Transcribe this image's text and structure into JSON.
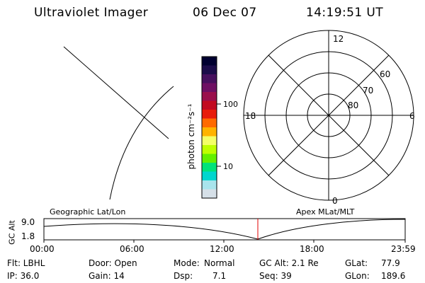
{
  "header": {
    "title": "Ultraviolet Imager",
    "date": "06 Dec 07",
    "time": "14:19:51 UT"
  },
  "colorbar": {
    "label": "photon cm⁻²s⁻¹",
    "ticks": [
      "100",
      "10"
    ],
    "colors": [
      "#000030",
      "#1b0c4a",
      "#46105e",
      "#6e0f63",
      "#9a0f4c",
      "#c20a20",
      "#e81c0b",
      "#ff6a00",
      "#ffb300",
      "#f4ff66",
      "#bfff00",
      "#63f000",
      "#00e37a",
      "#00d6ce",
      "#a8e4ec",
      "#d6e0e8"
    ]
  },
  "polar": {
    "mlt_labels": {
      "top": "12",
      "right": "6",
      "bottom": "0",
      "left": "18"
    },
    "lat_labels": [
      "60",
      "70",
      "80"
    ]
  },
  "plot": {
    "left_label": "Geographic Lat/Lon",
    "right_label": "Apex  MLat/MLT",
    "ylabel": "GC Alt",
    "yticks": [
      "9.0",
      "1.8"
    ],
    "xticks": [
      "00:00",
      "06:00",
      "12:00",
      "18:00",
      "23:59"
    ],
    "marker_color": "#e00000"
  },
  "info": {
    "flt": "Flt: LBHL",
    "ip": "IP: 36.0",
    "door": "Door: Open",
    "gain": "Gain: 14",
    "mode_label": "Mode:",
    "mode": "Normal",
    "dsp_label": "Dsp:",
    "dsp": "7.1",
    "gcalt": "GC Alt: 2.1 Re",
    "seq": "Seq: 39",
    "glat_label": "GLat:",
    "glat": "77.9",
    "glon_label": "GLon:",
    "glon": "189.6"
  }
}
